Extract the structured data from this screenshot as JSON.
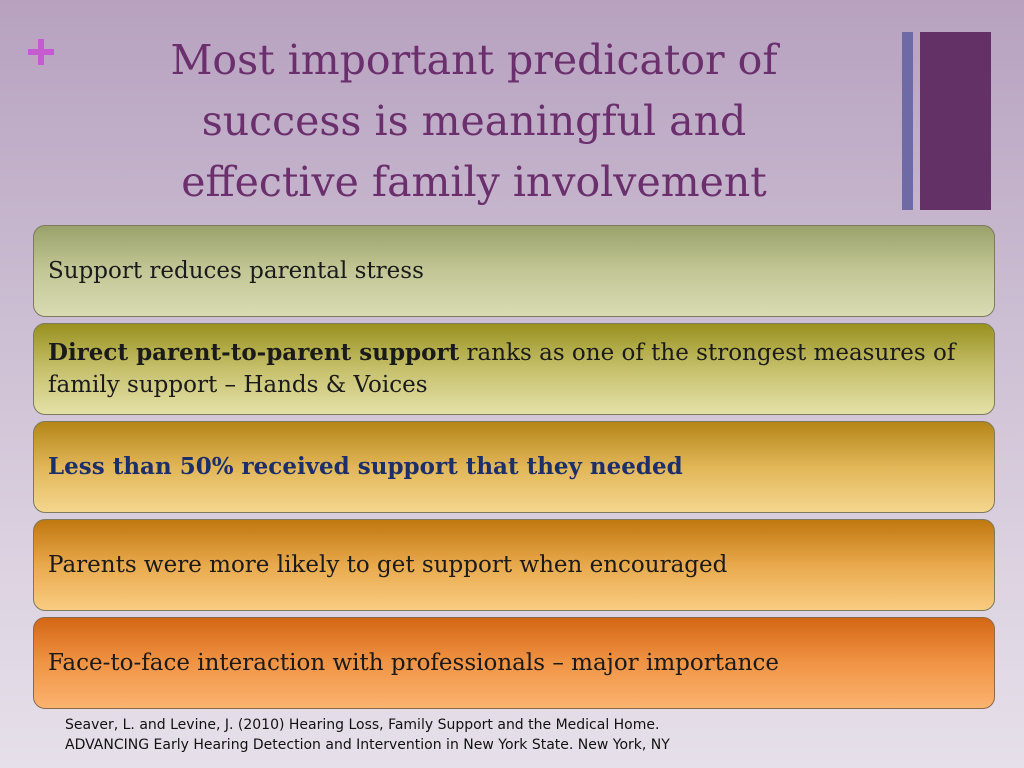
{
  "slide": {
    "title_lines": [
      "Most important predicator of",
      "success is meaningful and",
      "effective family involvement"
    ],
    "items": [
      {
        "text": "Support reduces parental stress"
      },
      {
        "bold_text": "Direct parent-to-parent support",
        "text": " ranks as one of the strongest measures of family support – Hands & Voices"
      },
      {
        "text": "Less than 50% received support that they needed"
      },
      {
        "text": "Parents were more likely to get support when encouraged"
      },
      {
        "text": "Face-to-face interaction with professionals – major importance"
      }
    ],
    "citation_lines": [
      "Seaver, L. and Levine, J. (2010) Hearing Loss, Family Support  and the Medical Home.",
      "ADVANCING Early Hearing Detection and Intervention in New York State. New York, NY"
    ]
  },
  "icons": {
    "plus": "plus-icon"
  },
  "colors": {
    "title": "#6a2f6c",
    "plus_accent": "#c65bd0",
    "accent_bar_thin": "#6d6aa6",
    "accent_bar_thick": "#633166",
    "highlight_text": "#1c2f6b"
  }
}
